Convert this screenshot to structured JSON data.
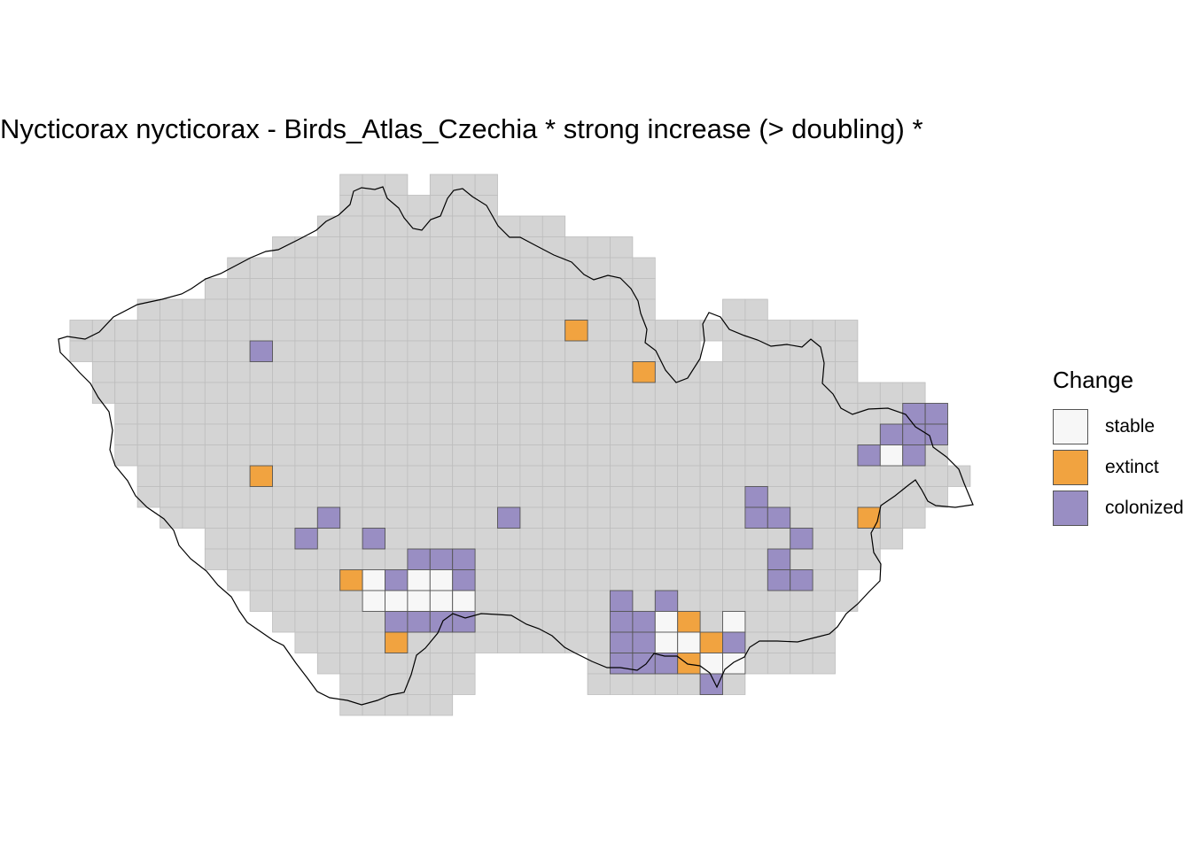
{
  "title": "Nycticorax nycticorax - Birds_Atlas_Czechia * strong increase (> doubling) *",
  "legend": {
    "title": "Change",
    "items": [
      {
        "key": "stable",
        "label": "stable",
        "color": "#f7f7f7"
      },
      {
        "key": "extinct",
        "label": "extinct",
        "color": "#f1a340"
      },
      {
        "key": "colonized",
        "label": "colonized",
        "color": "#998ec3"
      }
    ]
  },
  "colors": {
    "background_cell": "#d4d4d4",
    "grid_line": "#bdbdbd",
    "cell_border": "#555555",
    "outline": "#000000"
  },
  "chart_data": {
    "type": "heatmap",
    "grid": {
      "columns": 42,
      "rows": 26,
      "col_origin_note": "column 0 = westernmost grid cell, row 0 = northernmost"
    },
    "background_cells_by_row": [
      [
        [
          13,
          15
        ],
        [
          17,
          19
        ]
      ],
      [
        [
          13,
          19
        ]
      ],
      [
        [
          12,
          22
        ]
      ],
      [
        [
          10,
          25
        ]
      ],
      [
        [
          8,
          26
        ]
      ],
      [
        [
          7,
          26
        ]
      ],
      [
        [
          4,
          26
        ],
        [
          30,
          31
        ]
      ],
      [
        [
          1,
          29
        ],
        [
          30,
          35
        ]
      ],
      [
        [
          1,
          28
        ],
        [
          30,
          35
        ]
      ],
      [
        [
          2,
          35
        ]
      ],
      [
        [
          2,
          38
        ]
      ],
      [
        [
          3,
          38
        ]
      ],
      [
        [
          3,
          39
        ]
      ],
      [
        [
          3,
          39
        ]
      ],
      [
        [
          4,
          40
        ]
      ],
      [
        [
          4,
          39
        ]
      ],
      [
        [
          5,
          38
        ]
      ],
      [
        [
          7,
          37
        ]
      ],
      [
        [
          7,
          36
        ]
      ],
      [
        [
          8,
          35
        ]
      ],
      [
        [
          9,
          35
        ]
      ],
      [
        [
          10,
          34
        ]
      ],
      [
        [
          11,
          34
        ]
      ],
      [
        [
          12,
          18
        ],
        [
          24,
          34
        ]
      ],
      [
        [
          13,
          18
        ],
        [
          24,
          30
        ]
      ],
      [
        [
          13,
          17
        ]
      ]
    ],
    "cells": [
      {
        "col": 9,
        "row": 8,
        "status": "colonized"
      },
      {
        "col": 23,
        "row": 7,
        "status": "extinct"
      },
      {
        "col": 26,
        "row": 9,
        "status": "extinct"
      },
      {
        "col": 9,
        "row": 14,
        "status": "extinct"
      },
      {
        "col": 38,
        "row": 11,
        "status": "colonized"
      },
      {
        "col": 39,
        "row": 11,
        "status": "colonized"
      },
      {
        "col": 37,
        "row": 12,
        "status": "colonized"
      },
      {
        "col": 38,
        "row": 12,
        "status": "colonized"
      },
      {
        "col": 39,
        "row": 12,
        "status": "colonized"
      },
      {
        "col": 36,
        "row": 13,
        "status": "colonized"
      },
      {
        "col": 37,
        "row": 13,
        "status": "stable"
      },
      {
        "col": 38,
        "row": 13,
        "status": "colonized"
      },
      {
        "col": 31,
        "row": 15,
        "status": "colonized"
      },
      {
        "col": 31,
        "row": 16,
        "status": "colonized"
      },
      {
        "col": 32,
        "row": 16,
        "status": "colonized"
      },
      {
        "col": 36,
        "row": 16,
        "status": "extinct"
      },
      {
        "col": 33,
        "row": 17,
        "status": "colonized"
      },
      {
        "col": 32,
        "row": 18,
        "status": "colonized"
      },
      {
        "col": 32,
        "row": 19,
        "status": "colonized"
      },
      {
        "col": 33,
        "row": 19,
        "status": "colonized"
      },
      {
        "col": 12,
        "row": 16,
        "status": "colonized"
      },
      {
        "col": 20,
        "row": 16,
        "status": "colonized"
      },
      {
        "col": 11,
        "row": 17,
        "status": "colonized"
      },
      {
        "col": 14,
        "row": 17,
        "status": "colonized"
      },
      {
        "col": 16,
        "row": 18,
        "status": "colonized"
      },
      {
        "col": 17,
        "row": 18,
        "status": "colonized"
      },
      {
        "col": 18,
        "row": 18,
        "status": "colonized"
      },
      {
        "col": 13,
        "row": 19,
        "status": "extinct"
      },
      {
        "col": 14,
        "row": 19,
        "status": "stable"
      },
      {
        "col": 15,
        "row": 19,
        "status": "colonized"
      },
      {
        "col": 16,
        "row": 19,
        "status": "stable"
      },
      {
        "col": 17,
        "row": 19,
        "status": "stable"
      },
      {
        "col": 18,
        "row": 19,
        "status": "colonized"
      },
      {
        "col": 14,
        "row": 20,
        "status": "stable"
      },
      {
        "col": 15,
        "row": 20,
        "status": "stable"
      },
      {
        "col": 16,
        "row": 20,
        "status": "stable"
      },
      {
        "col": 17,
        "row": 20,
        "status": "stable"
      },
      {
        "col": 18,
        "row": 20,
        "status": "stable"
      },
      {
        "col": 15,
        "row": 21,
        "status": "colonized"
      },
      {
        "col": 16,
        "row": 21,
        "status": "colonized"
      },
      {
        "col": 17,
        "row": 21,
        "status": "colonized"
      },
      {
        "col": 18,
        "row": 21,
        "status": "colonized"
      },
      {
        "col": 15,
        "row": 22,
        "status": "extinct"
      },
      {
        "col": 25,
        "row": 20,
        "status": "colonized"
      },
      {
        "col": 27,
        "row": 20,
        "status": "colonized"
      },
      {
        "col": 25,
        "row": 21,
        "status": "colonized"
      },
      {
        "col": 26,
        "row": 21,
        "status": "colonized"
      },
      {
        "col": 27,
        "row": 21,
        "status": "stable"
      },
      {
        "col": 28,
        "row": 21,
        "status": "extinct"
      },
      {
        "col": 30,
        "row": 21,
        "status": "stable"
      },
      {
        "col": 25,
        "row": 22,
        "status": "colonized"
      },
      {
        "col": 26,
        "row": 22,
        "status": "colonized"
      },
      {
        "col": 27,
        "row": 22,
        "status": "stable"
      },
      {
        "col": 28,
        "row": 22,
        "status": "stable"
      },
      {
        "col": 29,
        "row": 22,
        "status": "extinct"
      },
      {
        "col": 30,
        "row": 22,
        "status": "colonized"
      },
      {
        "col": 25,
        "row": 23,
        "status": "colonized"
      },
      {
        "col": 26,
        "row": 23,
        "status": "colonized"
      },
      {
        "col": 27,
        "row": 23,
        "status": "colonized"
      },
      {
        "col": 28,
        "row": 23,
        "status": "extinct"
      },
      {
        "col": 29,
        "row": 23,
        "status": "stable"
      },
      {
        "col": 30,
        "row": 23,
        "status": "stable"
      },
      {
        "col": 29,
        "row": 24,
        "status": "colonized"
      }
    ]
  }
}
